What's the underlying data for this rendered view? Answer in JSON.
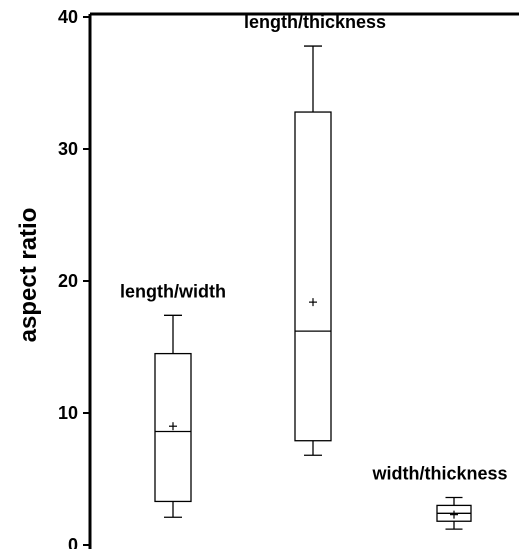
{
  "chart_data": {
    "type": "box",
    "ylabel": "aspect ratio",
    "ylim": [
      0,
      40
    ],
    "yticks": [
      "0",
      "10",
      "20",
      "30",
      "40"
    ],
    "legend": "none",
    "grid": false,
    "series": [
      {
        "name": "length/width",
        "whisker_low": 2.1,
        "q1": 3.3,
        "median": 8.6,
        "q3": 14.5,
        "whisker_high": 17.4,
        "mean": 9.0
      },
      {
        "name": "length/thickness",
        "whisker_low": 6.8,
        "q1": 7.9,
        "median": 16.2,
        "q3": 32.8,
        "whisker_high": 37.8,
        "mean": 18.4
      },
      {
        "name": "width/thickness",
        "whisker_low": 1.2,
        "q1": 1.8,
        "median": 2.4,
        "q3": 3.0,
        "whisker_high": 3.6,
        "mean": 2.3
      }
    ]
  }
}
